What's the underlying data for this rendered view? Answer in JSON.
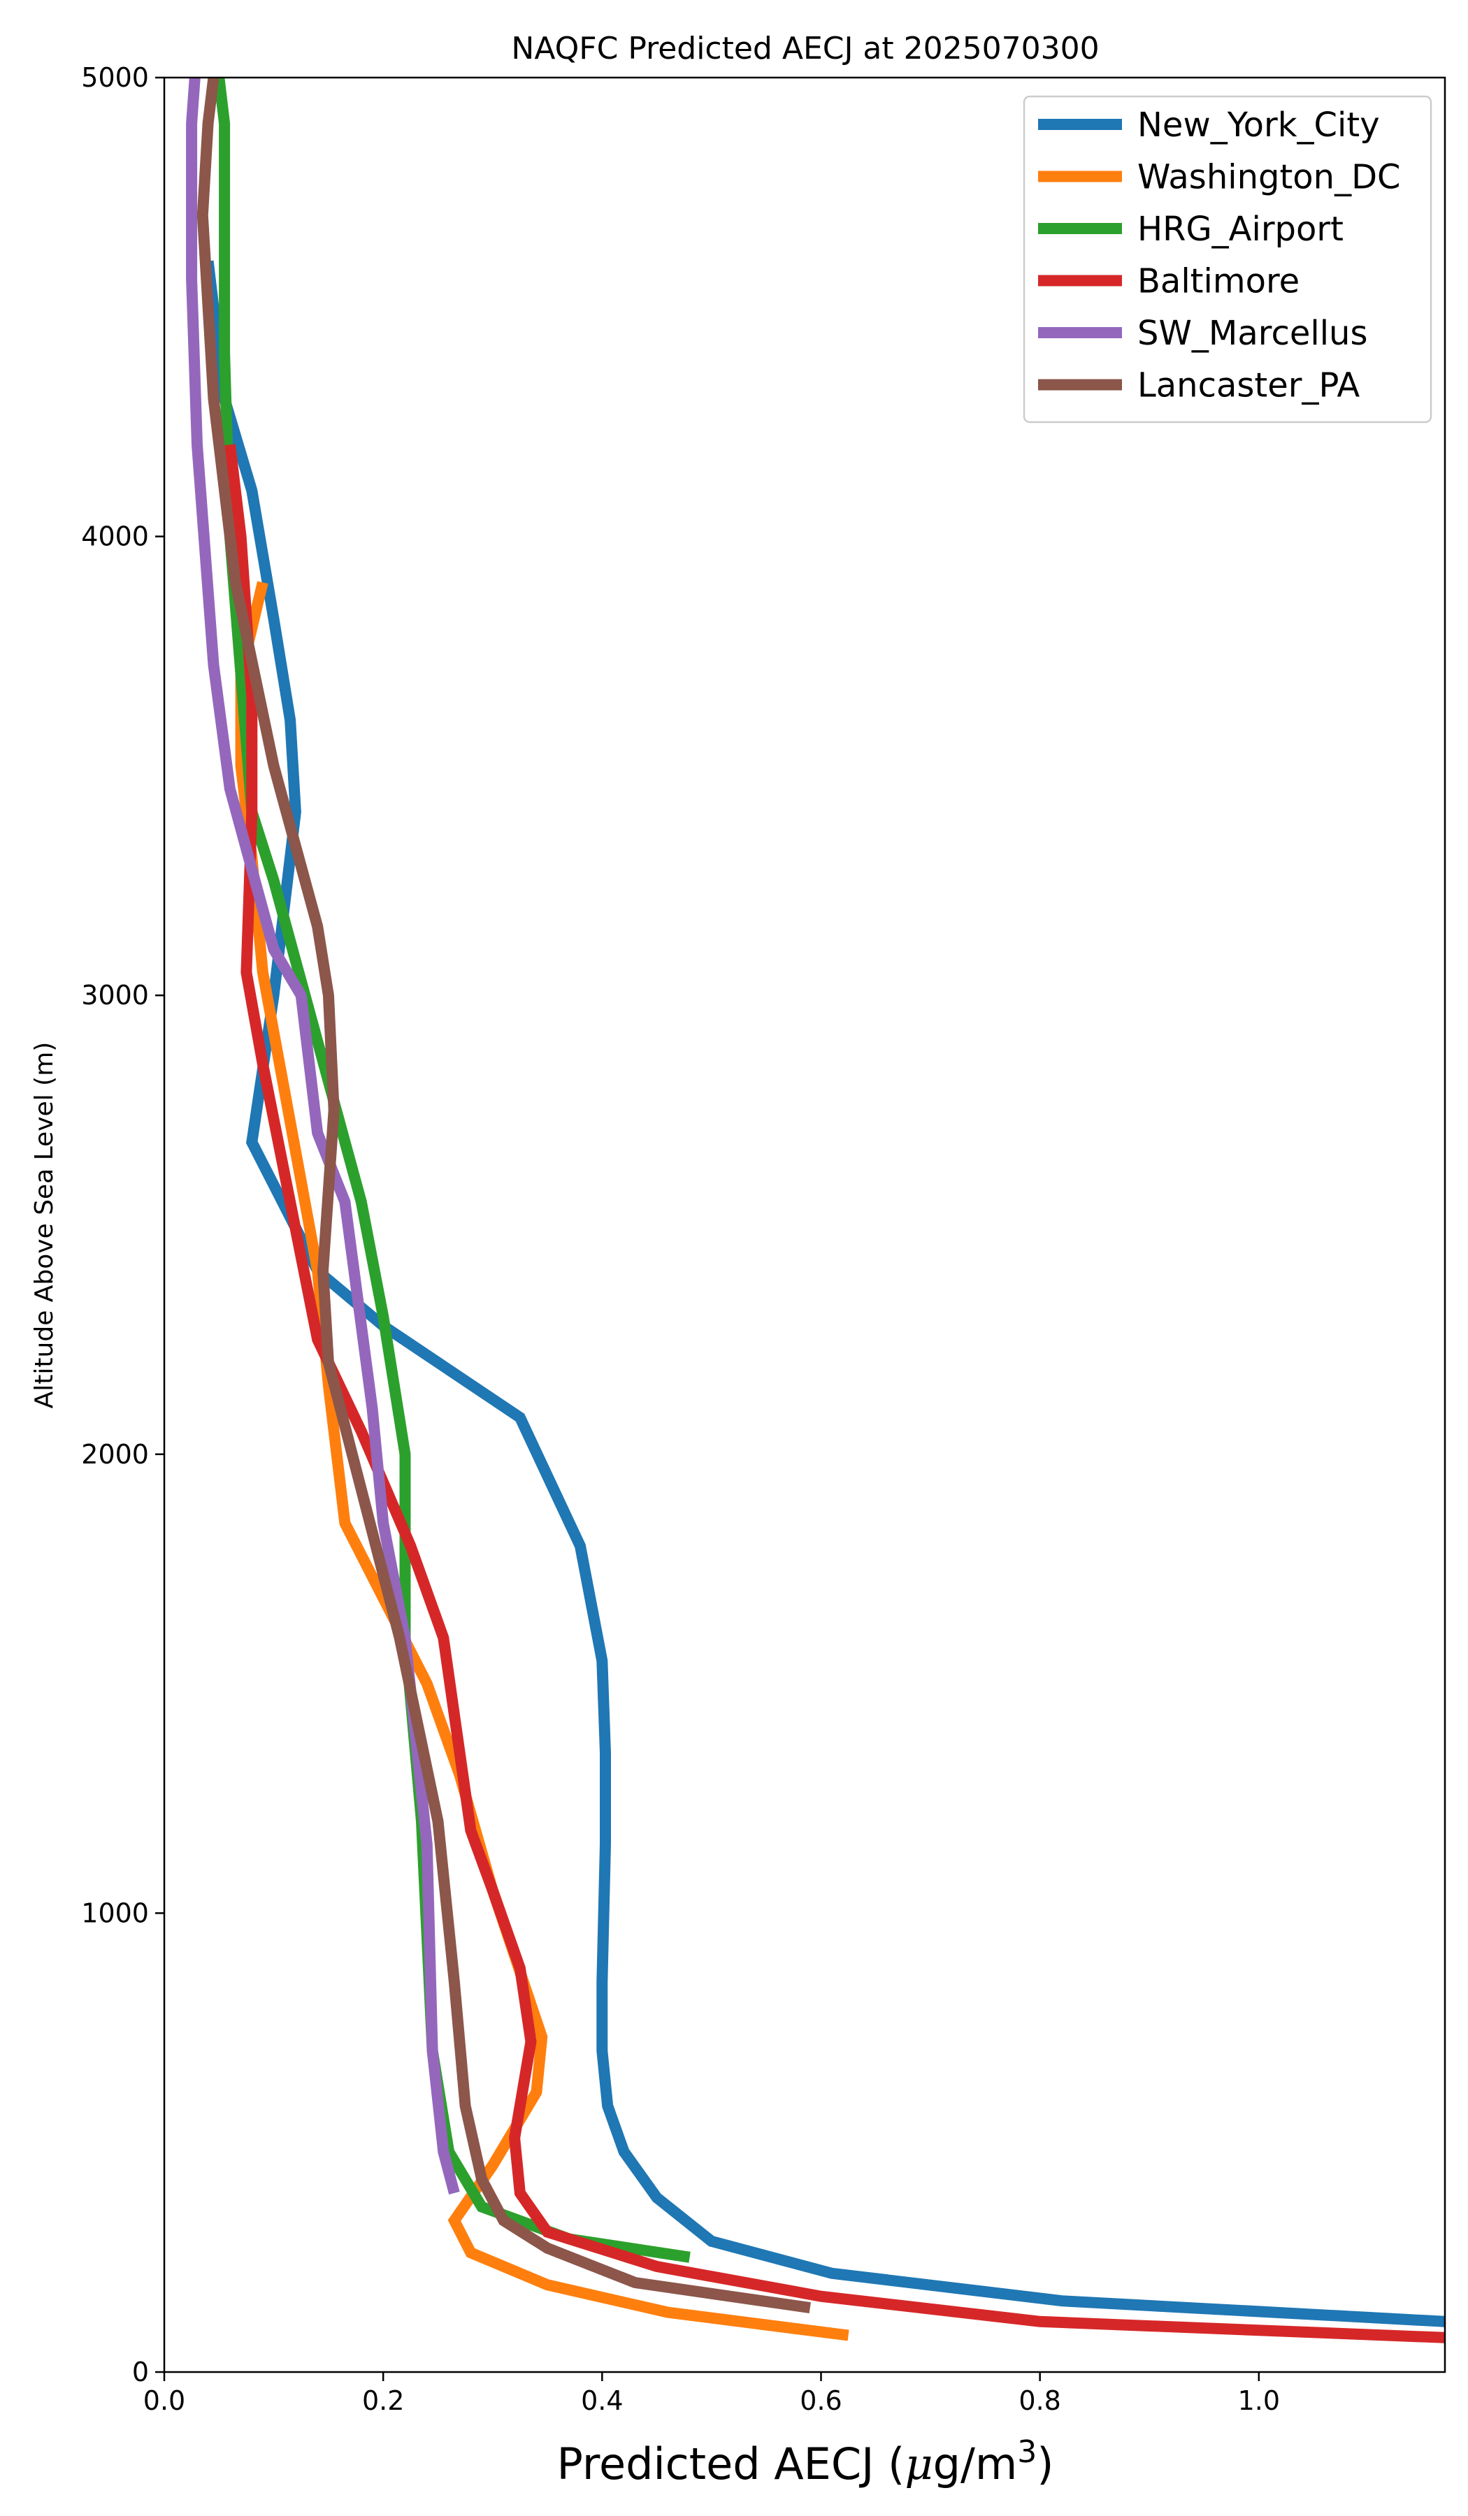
{
  "chart_data": {
    "type": "line",
    "title": "NAQFC Predicted AECJ at 2025070300",
    "xlabel": "Predicted AECJ (μg/m³)",
    "ylabel": "Altitude Above Sea Level (m)",
    "xlim": [
      0.0,
      1.17
    ],
    "ylim": [
      0,
      5000
    ],
    "xticks": [
      0.0,
      0.2,
      0.4,
      0.6,
      0.8,
      1.0
    ],
    "xtick_labels": [
      "0.0",
      "0.2",
      "0.4",
      "0.6",
      "0.8",
      "1.0"
    ],
    "yticks": [
      0,
      1000,
      2000,
      3000,
      4000,
      5000
    ],
    "ytick_labels": [
      "0",
      "1000",
      "2000",
      "3000",
      "4000",
      "5000"
    ],
    "grid": false,
    "legend_position": "top-right",
    "series": [
      {
        "name": "New_York_City",
        "color": "#1f77b4",
        "x": [
          1.17,
          0.82,
          0.61,
          0.5,
          0.45,
          0.42,
          0.405,
          0.4,
          0.4,
          0.403,
          0.403,
          0.4,
          0.38,
          0.325,
          0.2,
          0.14,
          0.08,
          0.1,
          0.12,
          0.115,
          0.1,
          0.08,
          0.055,
          0.04
        ],
        "y": [
          110,
          155,
          215,
          285,
          380,
          480,
          580,
          700,
          850,
          1150,
          1350,
          1550,
          1800,
          2080,
          2280,
          2400,
          2680,
          3000,
          3400,
          3600,
          3820,
          4100,
          4300,
          4600
        ]
      },
      {
        "name": "Washington_DC",
        "color": "#ff7f0e",
        "x": [
          0.625,
          0.46,
          0.35,
          0.28,
          0.265,
          0.3,
          0.34,
          0.345,
          0.3,
          0.27,
          0.24,
          0.165,
          0.15,
          0.14,
          0.09,
          0.08,
          0.07,
          0.07,
          0.09
        ],
        "y": [
          80,
          130,
          190,
          260,
          330,
          450,
          610,
          730,
          1050,
          1300,
          1500,
          1850,
          2150,
          2400,
          3050,
          3300,
          3500,
          3700,
          3900
        ]
      },
      {
        "name": "HRG_Airport",
        "color": "#2ca02c",
        "x": [
          0.48,
          0.37,
          0.29,
          0.26,
          0.245,
          0.235,
          0.22,
          0.22,
          0.2,
          0.18,
          0.1,
          0.08,
          0.06,
          0.055,
          0.055,
          0.055,
          0.05
        ],
        "y": [
          250,
          290,
          360,
          480,
          700,
          1200,
          1600,
          2000,
          2300,
          2550,
          3250,
          3400,
          4000,
          4400,
          4700,
          4900,
          5000
        ]
      },
      {
        "name": "Baltimore",
        "color": "#d62728",
        "x": [
          1.17,
          0.8,
          0.6,
          0.45,
          0.35,
          0.325,
          0.32,
          0.335,
          0.325,
          0.3,
          0.28,
          0.255,
          0.225,
          0.18,
          0.14,
          0.09,
          0.075,
          0.08,
          0.08,
          0.07,
          0.06
        ],
        "y": [
          75,
          110,
          165,
          230,
          305,
          390,
          510,
          720,
          880,
          1050,
          1180,
          1600,
          1800,
          2050,
          2250,
          2850,
          3050,
          3400,
          3650,
          4000,
          4200
        ]
      },
      {
        "name": "SW_Marcellus",
        "color": "#9467bd",
        "x": [
          0.265,
          0.255,
          0.245,
          0.24,
          0.22,
          0.2,
          0.19,
          0.165,
          0.14,
          0.125,
          0.1,
          0.06,
          0.045,
          0.03,
          0.025,
          0.025,
          0.028
        ],
        "y": [
          390,
          480,
          700,
          1150,
          1600,
          1850,
          2100,
          2550,
          2700,
          3000,
          3100,
          3450,
          3720,
          4200,
          4560,
          4900,
          5000
        ]
      },
      {
        "name": "Lancaster_PA",
        "color": "#8c564b",
        "x": [
          0.59,
          0.43,
          0.35,
          0.31,
          0.29,
          0.275,
          0.265,
          0.25,
          0.215,
          0.15,
          0.145,
          0.155,
          0.15,
          0.14,
          0.1,
          0.065,
          0.045,
          0.035,
          0.04,
          0.045
        ],
        "y": [
          140,
          195,
          270,
          330,
          420,
          580,
          850,
          1200,
          1600,
          2200,
          2400,
          2750,
          3000,
          3150,
          3500,
          3900,
          4300,
          4700,
          4900,
          5000
        ]
      }
    ]
  }
}
